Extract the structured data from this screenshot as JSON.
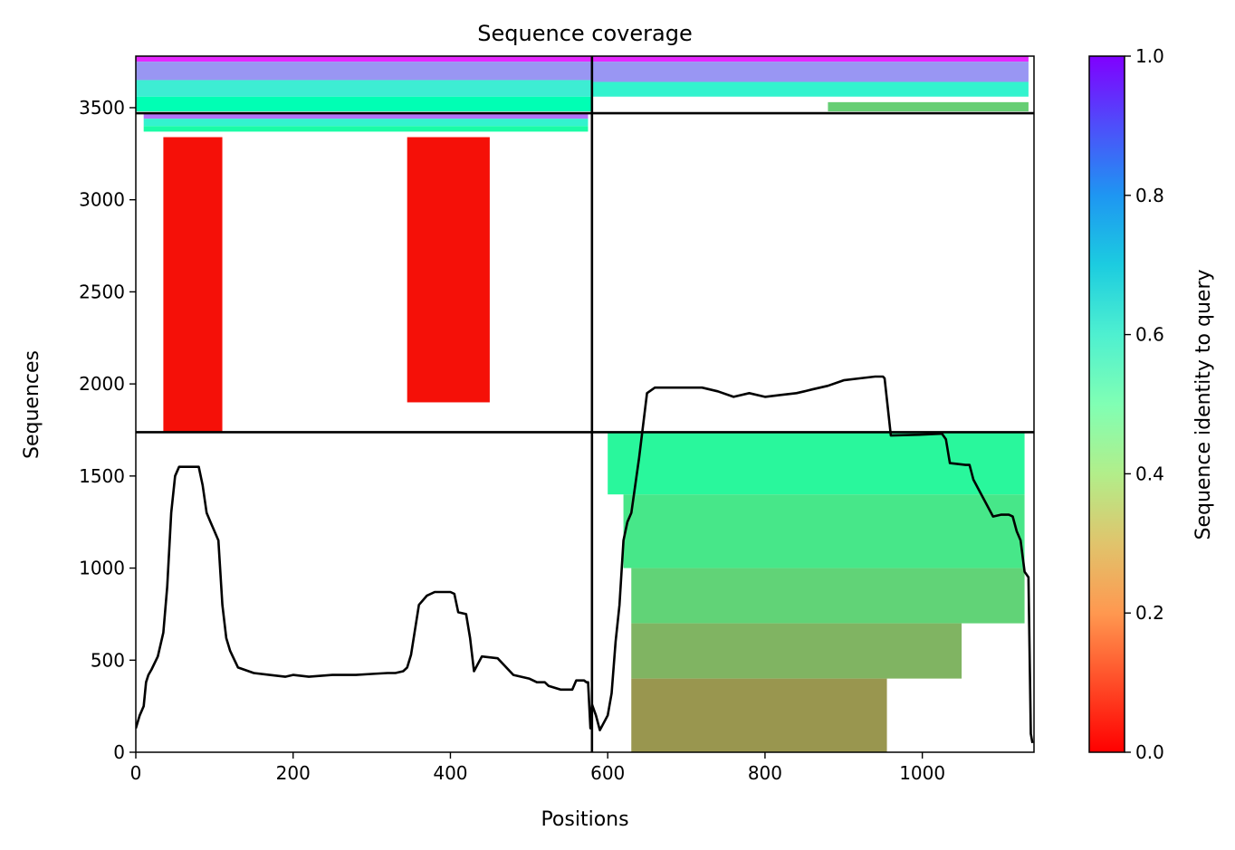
{
  "chart_data": {
    "type": "heatmap",
    "title": "Sequence coverage",
    "xlabel": "Positions",
    "ylabel": "Sequences",
    "xlim": [
      0,
      1142
    ],
    "ylim": [
      0,
      3780
    ],
    "x_ticks": [
      0,
      200,
      400,
      600,
      800,
      1000
    ],
    "y_ticks": [
      0,
      500,
      1000,
      1500,
      2000,
      2500,
      3000,
      3500
    ],
    "colorbar": {
      "label": "Sequence identity to query",
      "range": [
        0,
        1
      ],
      "ticks": [
        0.0,
        0.2,
        0.4,
        0.6,
        0.8,
        1.0
      ],
      "colormap": "rainbow_r"
    },
    "dividers": {
      "vertical_x": [
        580
      ],
      "horizontal_y": [
        1738,
        3470
      ]
    },
    "coverage_line": {
      "name": "",
      "x": [
        0,
        5,
        10,
        13,
        16,
        20,
        28,
        35,
        40,
        45,
        50,
        55,
        60,
        70,
        80,
        85,
        90,
        95,
        100,
        105,
        110,
        115,
        120,
        130,
        150,
        170,
        190,
        200,
        220,
        250,
        280,
        300,
        320,
        330,
        340,
        345,
        350,
        360,
        370,
        380,
        400,
        405,
        410,
        420,
        425,
        430,
        440,
        460,
        480,
        500,
        510,
        520,
        525,
        540,
        555,
        560,
        565,
        570,
        573,
        575,
        578,
        580,
        585,
        590,
        600,
        605,
        610,
        615,
        620,
        625,
        630,
        640,
        650,
        660,
        700,
        720,
        740,
        760,
        780,
        800,
        820,
        840,
        850,
        860,
        880,
        900,
        920,
        940,
        950,
        952,
        960,
        1000,
        1025,
        1030,
        1035,
        1055,
        1060,
        1065,
        1090,
        1100,
        1110,
        1115,
        1120,
        1125,
        1130,
        1135,
        1138,
        1140
      ],
      "y": [
        130,
        200,
        250,
        380,
        420,
        450,
        520,
        650,
        900,
        1300,
        1500,
        1550,
        1550,
        1550,
        1550,
        1450,
        1300,
        1250,
        1200,
        1150,
        800,
        620,
        550,
        460,
        430,
        420,
        410,
        420,
        410,
        420,
        420,
        425,
        430,
        430,
        440,
        460,
        530,
        800,
        850,
        870,
        870,
        860,
        760,
        750,
        620,
        440,
        520,
        510,
        420,
        400,
        380,
        380,
        360,
        340,
        340,
        390,
        390,
        390,
        380,
        380,
        130,
        260,
        200,
        120,
        200,
        320,
        600,
        800,
        1150,
        1250,
        1300,
        1600,
        1950,
        1980,
        1980,
        1980,
        1960,
        1930,
        1950,
        1930,
        1940,
        1950,
        1960,
        1970,
        1990,
        2020,
        2030,
        2040,
        2040,
        2030,
        1720,
        1725,
        1730,
        1700,
        1570,
        1560,
        1560,
        1480,
        1280,
        1290,
        1290,
        1280,
        1200,
        1150,
        980,
        950,
        100,
        50
      ]
    },
    "blocks": [
      {
        "name": "top-left-blue",
        "x0": 0,
        "x1": 580,
        "y0": 3750,
        "y1": 3780,
        "identity": 0.95
      },
      {
        "name": "top-left-upper",
        "x0": 0,
        "x1": 580,
        "y0": 3650,
        "y1": 3750,
        "identity": 0.8
      },
      {
        "name": "top-left-mid",
        "x0": 0,
        "x1": 580,
        "y0": 3560,
        "y1": 3650,
        "identity": 0.62
      },
      {
        "name": "top-left-low",
        "x0": 0,
        "x1": 580,
        "y0": 3480,
        "y1": 3560,
        "identity": 0.5
      },
      {
        "name": "top-right-blue",
        "x0": 580,
        "x1": 1135,
        "y0": 3750,
        "y1": 3780,
        "identity": 0.95
      },
      {
        "name": "top-right-upper",
        "x0": 580,
        "x1": 1135,
        "y0": 3640,
        "y1": 3750,
        "identity": 0.8
      },
      {
        "name": "top-right-mid",
        "x0": 580,
        "x1": 1135,
        "y0": 3560,
        "y1": 3640,
        "identity": 0.6
      },
      {
        "name": "top-right-low",
        "x0": 880,
        "x1": 1135,
        "y0": 3480,
        "y1": 3530,
        "identity": 0.3
      },
      {
        "name": "mid-band-blue",
        "x0": 10,
        "x1": 575,
        "y0": 3440,
        "y1": 3470,
        "identity": 0.85
      },
      {
        "name": "mid-band-teal",
        "x0": 10,
        "x1": 575,
        "y0": 3400,
        "y1": 3440,
        "identity": 0.6
      },
      {
        "name": "mid-band-green",
        "x0": 10,
        "x1": 575,
        "y0": 3370,
        "y1": 3400,
        "identity": 0.45
      },
      {
        "name": "left-red-domain",
        "x0": 35,
        "x1": 110,
        "y0": 1738,
        "y1": 3340,
        "identity": 0.02
      },
      {
        "name": "right-red-domain",
        "x0": 345,
        "x1": 450,
        "y0": 1900,
        "y1": 3340,
        "identity": 0.02
      },
      {
        "name": "bottom-right-green",
        "x0": 600,
        "x1": 1130,
        "y0": 1400,
        "y1": 1738,
        "identity": 0.42
      },
      {
        "name": "bottom-right-yellow-green",
        "x0": 620,
        "x1": 1130,
        "y0": 1000,
        "y1": 1400,
        "identity": 0.36
      },
      {
        "name": "bottom-right-yellow",
        "x0": 630,
        "x1": 1130,
        "y0": 700,
        "y1": 1000,
        "identity": 0.31
      },
      {
        "name": "bottom-right-orange",
        "x0": 630,
        "x1": 1050,
        "y0": 400,
        "y1": 700,
        "identity": 0.25
      },
      {
        "name": "bottom-right-deep-orange",
        "x0": 630,
        "x1": 955,
        "y0": 0,
        "y1": 400,
        "identity": 0.2
      }
    ]
  }
}
